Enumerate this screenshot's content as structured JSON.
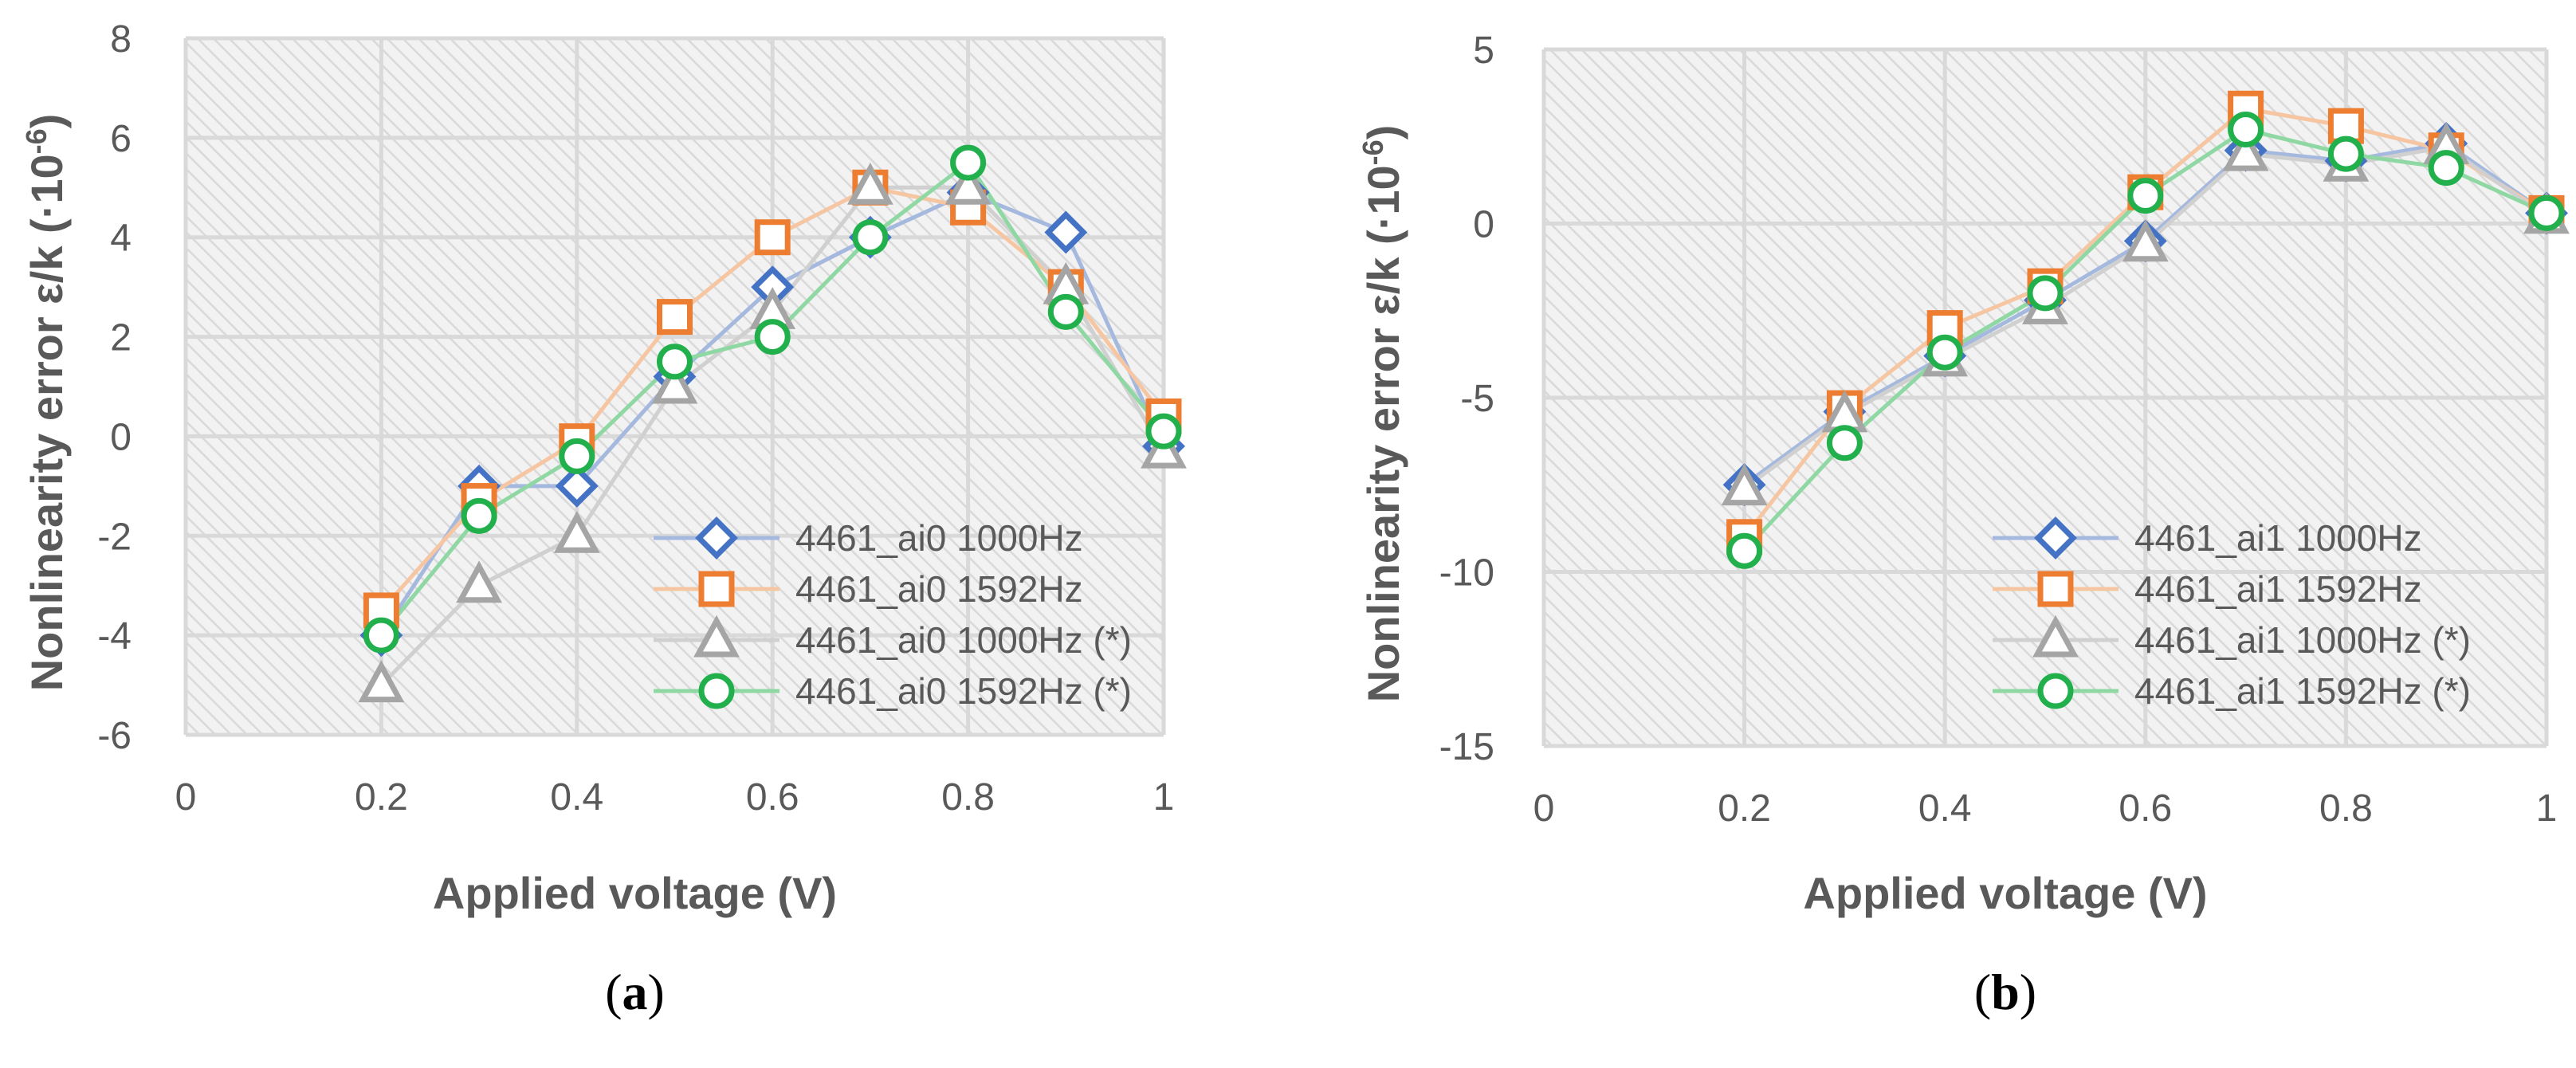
{
  "chart_data": [
    {
      "type": "line",
      "panel_label": "a",
      "xlabel": "Applied voltage (V)",
      "ylabel": "Nonlinearity error ε/k (·10",
      "ylabel_exponent": "-6",
      "ylabel_close": ")",
      "xlim": [
        0,
        1
      ],
      "ylim": [
        -6,
        8
      ],
      "xticks": [
        0,
        0.2,
        0.4,
        0.6,
        0.8,
        1
      ],
      "xtick_labels": [
        "0",
        "0.2",
        "0.4",
        "0.6",
        "0.8",
        "1"
      ],
      "yticks": [
        -6,
        -4,
        -2,
        0,
        2,
        4,
        6,
        8
      ],
      "ytick_labels": [
        "-6",
        "-4",
        "-2",
        "0",
        "2",
        "4",
        "6",
        "8"
      ],
      "grid": true,
      "legend_position": "bottom-right",
      "x": [
        0.2,
        0.3,
        0.4,
        0.5,
        0.6,
        0.7,
        0.8,
        0.9,
        1.0
      ],
      "series": [
        {
          "name": "4461_ai0 1000Hz",
          "marker": "diamond",
          "color": "#4472C4",
          "line_color": "#A5B9DE",
          "values": [
            -4.0,
            -1.0,
            -1.0,
            1.2,
            3.0,
            4.0,
            4.9,
            4.1,
            -0.2
          ]
        },
        {
          "name": "4461_ai0 1592Hz",
          "marker": "square",
          "color": "#ED7D31",
          "line_color": "#F6C6A3",
          "values": [
            -3.5,
            -1.3,
            -0.1,
            2.4,
            4.0,
            5.0,
            4.6,
            3.0,
            0.4
          ]
        },
        {
          "name": "4461_ai0 1000Hz (*)",
          "marker": "triangle",
          "color": "#A5A5A5",
          "line_color": "#D0D0D0",
          "values": [
            -5.0,
            -3.0,
            -2.0,
            1.0,
            2.5,
            5.0,
            5.0,
            3.0,
            -0.3
          ]
        },
        {
          "name": "4461_ai0 1592Hz (*)",
          "marker": "circle",
          "color": "#21B04B",
          "line_color": "#8FD8A3",
          "values": [
            -4.0,
            -1.6,
            -0.4,
            1.5,
            2.0,
            4.0,
            5.5,
            2.5,
            0.1
          ]
        }
      ]
    },
    {
      "type": "line",
      "panel_label": "b",
      "xlabel": "Applied voltage (V)",
      "ylabel": "Nonlinearity error ε/k (·10",
      "ylabel_exponent": "-6",
      "ylabel_close": ")",
      "xlim": [
        0,
        1
      ],
      "ylim": [
        -15,
        5
      ],
      "xticks": [
        0,
        0.2,
        0.4,
        0.6,
        0.8,
        1
      ],
      "xtick_labels": [
        "0",
        "0.2",
        "0.4",
        "0.6",
        "0.8",
        "1"
      ],
      "yticks": [
        -15,
        -10,
        -5,
        0,
        5
      ],
      "ytick_labels": [
        "-15",
        "-10",
        "-5",
        "0",
        "5"
      ],
      "grid": true,
      "legend_position": "bottom-right",
      "x": [
        0.2,
        0.3,
        0.4,
        0.5,
        0.6,
        0.7,
        0.8,
        0.9,
        1.0
      ],
      "series": [
        {
          "name": "4461_ai1 1000Hz",
          "marker": "diamond",
          "color": "#4472C4",
          "line_color": "#A5B9DE",
          "values": [
            -7.5,
            -5.4,
            -3.8,
            -2.2,
            -0.5,
            2.1,
            1.8,
            2.3,
            0.3
          ]
        },
        {
          "name": "4461_ai1 1592Hz",
          "marker": "square",
          "color": "#ED7D31",
          "line_color": "#F6C6A3",
          "values": [
            -9.0,
            -5.3,
            -3.0,
            -1.8,
            0.9,
            3.3,
            2.8,
            2.1,
            0.3
          ]
        },
        {
          "name": "4461_ai1 1000Hz (*)",
          "marker": "triangle",
          "color": "#A5A5A5",
          "line_color": "#D0D0D0",
          "values": [
            -7.6,
            -5.5,
            -3.9,
            -2.4,
            -0.6,
            2.0,
            1.7,
            2.2,
            0.2
          ]
        },
        {
          "name": "4461_ai1 1592Hz (*)",
          "marker": "circle",
          "color": "#21B04B",
          "line_color": "#8FD8A3",
          "values": [
            -9.4,
            -6.3,
            -3.7,
            -2.0,
            0.8,
            2.7,
            2.0,
            1.6,
            0.3
          ]
        }
      ]
    }
  ]
}
